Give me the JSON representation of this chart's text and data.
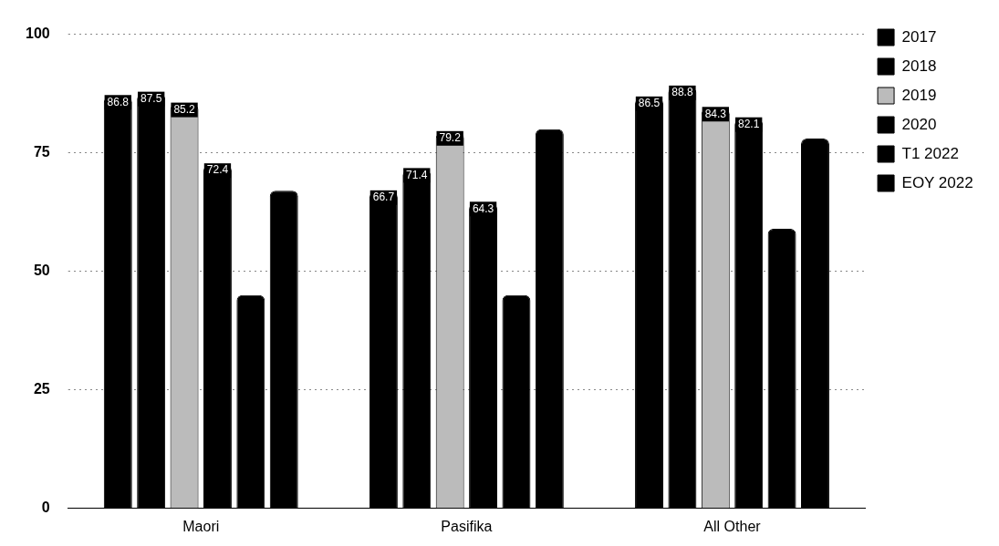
{
  "chart_data": {
    "type": "bar",
    "categories": [
      "Maori",
      "Pasifika",
      "All Other"
    ],
    "series": [
      {
        "name": "2017",
        "color": "#000000",
        "values": [
          86.8,
          66.7,
          86.5
        ],
        "value_labels": [
          "86.8",
          "66.7",
          "86.5"
        ]
      },
      {
        "name": "2018",
        "color": "#000000",
        "values": [
          87.5,
          71.4,
          88.8
        ],
        "value_labels": [
          "87.5",
          "71.4",
          "88.8"
        ]
      },
      {
        "name": "2019",
        "color": "#bbbbbb",
        "values": [
          85.2,
          79.2,
          84.3
        ],
        "value_labels": [
          "85.2",
          "79.2",
          "84.3"
        ]
      },
      {
        "name": "2020",
        "color": "#000000",
        "values": [
          72.4,
          64.3,
          82.1
        ],
        "value_labels": [
          "72.4",
          "64.3",
          "82.1"
        ]
      },
      {
        "name": "T1 2022",
        "color": "#000000",
        "values": [
          45,
          45,
          59
        ],
        "value_labels": [
          null,
          null,
          null
        ]
      },
      {
        "name": "EOY 2022",
        "color": "#000000",
        "values": [
          67,
          80,
          78
        ],
        "value_labels": [
          null,
          null,
          null
        ]
      }
    ],
    "ylim": [
      0,
      100
    ],
    "yticks": [
      0,
      25,
      50,
      75,
      100
    ],
    "grid": "y",
    "legend": "right"
  }
}
